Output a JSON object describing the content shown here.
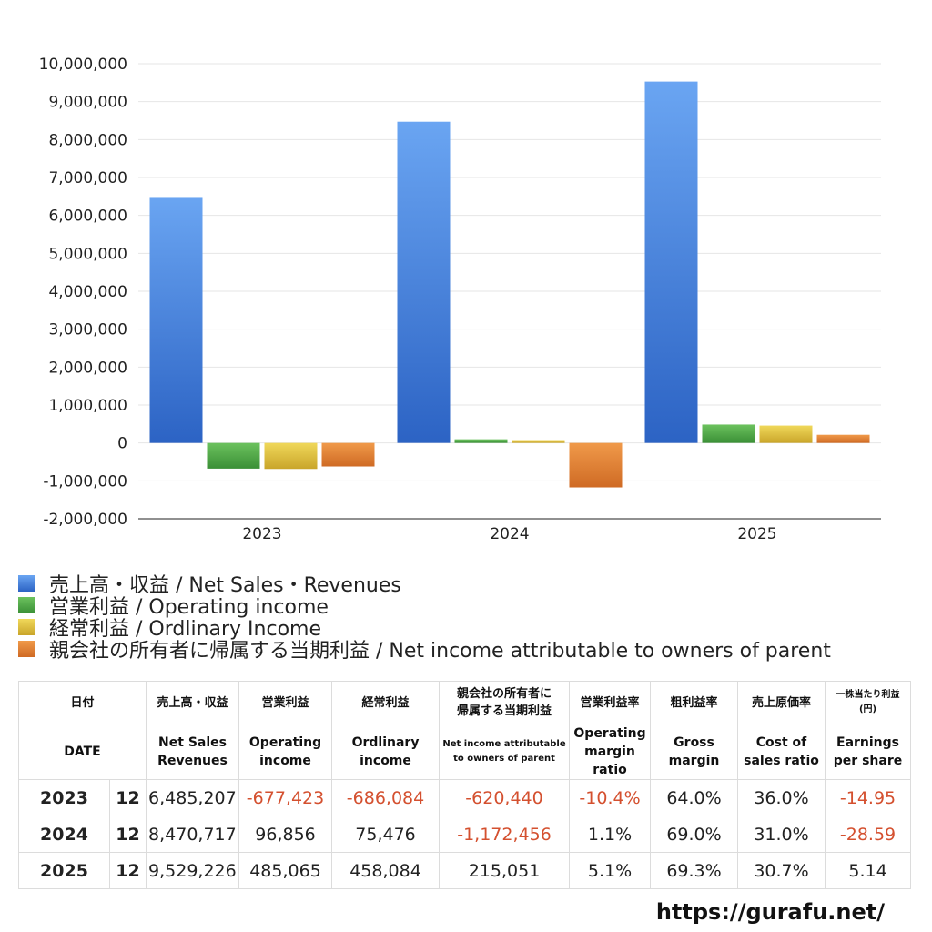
{
  "chart_data": {
    "type": "bar",
    "categories": [
      "2023",
      "2024",
      "2025"
    ],
    "ylim": [
      -2000000,
      10000000
    ],
    "yticks": [
      "10,000,000",
      "9,000,000",
      "8,000,000",
      "7,000,000",
      "6,000,000",
      "5,000,000",
      "4,000,000",
      "3,000,000",
      "2,000,000",
      "1,000,000",
      "0",
      "-1,000,000",
      "-2,000,000"
    ],
    "ytick_values": [
      10000000,
      9000000,
      8000000,
      7000000,
      6000000,
      5000000,
      4000000,
      3000000,
      2000000,
      1000000,
      0,
      -1000000,
      -2000000
    ],
    "grid": true,
    "legend_position": "bottom",
    "series": [
      {
        "name": "売上高・収益 / Net Sales・Revenues",
        "values": [
          6485207,
          8470717,
          9529226
        ],
        "color": "#3b7be0"
      },
      {
        "name": "営業利益 / Operating income",
        "values": [
          -677423,
          96856,
          485065
        ],
        "color": "#4aa544"
      },
      {
        "name": "経常利益 / Ordlinary Income",
        "values": [
          -686084,
          75476,
          458084
        ],
        "color": "#e2c13a"
      },
      {
        "name": "親会社の所有者に帰属する当期利益 / Net income attributable to owners of parent",
        "values": [
          -620440,
          -1172456,
          215051
        ],
        "color": "#e07d2e"
      }
    ]
  },
  "table": {
    "header_jp": [
      "日付",
      "売上高・収益",
      "営業利益",
      "経常利益",
      "親会社の所有者に\n帰属する当期利益",
      "営業利益率",
      "粗利益率",
      "売上原価率",
      "一株当たり利益\n(円)"
    ],
    "header_en": [
      "DATE",
      "Net Sales\nRevenues",
      "Operating\nincome",
      "Ordlinary\nincome",
      "Net income attributable\nto owners of parent",
      "Operating\nmargin\nratio",
      "Gross\nmargin",
      "Cost of\nsales ratio",
      "Earnings\nper share"
    ],
    "rows": [
      {
        "year": "2023",
        "month": "12",
        "sales": "6,485,207",
        "op": "-677,423",
        "ord": "-686,084",
        "net": "-620,440",
        "opm": "-10.4%",
        "gm": "64.0%",
        "cost": "36.0%",
        "eps": "-14.95"
      },
      {
        "year": "2024",
        "month": "12",
        "sales": "8,470,717",
        "op": "96,856",
        "ord": "75,476",
        "net": "-1,172,456",
        "opm": "1.1%",
        "gm": "69.0%",
        "cost": "31.0%",
        "eps": "-28.59"
      },
      {
        "year": "2025",
        "month": "12",
        "sales": "9,529,226",
        "op": "485,065",
        "ord": "458,084",
        "net": "215,051",
        "opm": "5.1%",
        "gm": "69.3%",
        "cost": "30.7%",
        "eps": "5.14"
      }
    ]
  },
  "site_url": "https://gurafu.net/"
}
